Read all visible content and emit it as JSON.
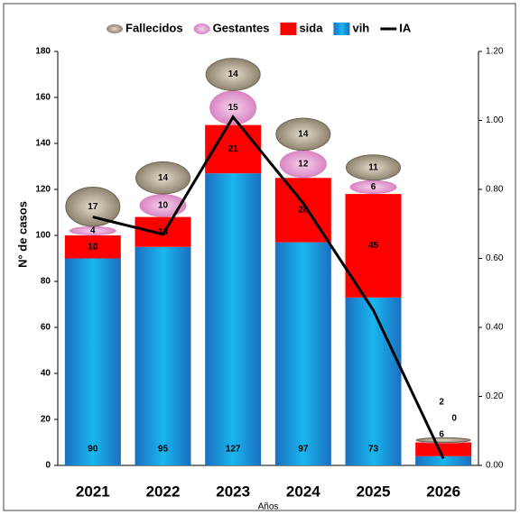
{
  "chart_data": {
    "type": "bar",
    "x_label": "Años",
    "y_label": "N° de casos",
    "categories": [
      "2021",
      "2022",
      "2023",
      "2024",
      "2025",
      "2026"
    ],
    "series": [
      {
        "name": "vih",
        "color": "#1590d8",
        "values": [
          90,
          95,
          127,
          97,
          73,
          4
        ]
      },
      {
        "name": "sida",
        "color": "#ff0000",
        "values": [
          10,
          13,
          21,
          28,
          45,
          6
        ]
      },
      {
        "name": "Gestantes",
        "color": "#e6a3d4",
        "values": [
          4,
          10,
          15,
          12,
          6,
          0
        ]
      },
      {
        "name": "Fallecidos",
        "color": "#a59a86",
        "values": [
          17,
          14,
          14,
          14,
          11,
          2
        ]
      },
      {
        "name": "IA",
        "color": "#000000",
        "axis": "y2",
        "values": [
          0.72,
          0.67,
          1.01,
          0.76,
          0.45,
          0.02
        ]
      }
    ],
    "legend_order": [
      3,
      2,
      1,
      0,
      4
    ],
    "stacked": true,
    "ylim": [
      0,
      180
    ],
    "yticks": [
      0,
      20,
      40,
      60,
      80,
      100,
      120,
      140,
      160,
      180
    ],
    "y2lim": [
      0,
      1.2
    ],
    "y2ticks": [
      {
        "value": 0,
        "label": "0.00"
      },
      {
        "value": 0.2,
        "label": "0.20"
      },
      {
        "value": 0.4,
        "label": "0.40"
      },
      {
        "value": 0.6,
        "label": "0.60"
      },
      {
        "value": 0.8,
        "label": "0.80"
      },
      {
        "value": 1.0,
        "label": "1.00"
      },
      {
        "value": 1.2,
        "label": "1.20"
      }
    ],
    "legend": "top"
  }
}
